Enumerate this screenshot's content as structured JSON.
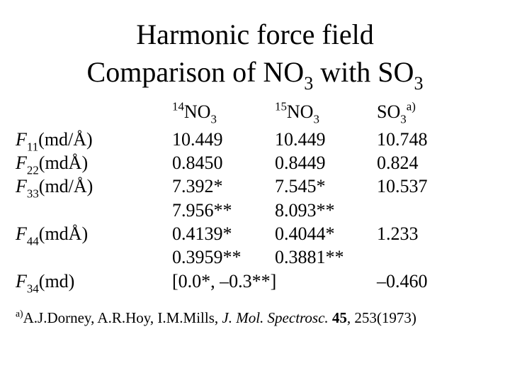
{
  "title": {
    "line1": "Harmonic force field",
    "line2": {
      "a": "Comparison of NO",
      "a_sub": "3",
      "b": " with SO",
      "b_sub": "3"
    }
  },
  "table": {
    "columns": [
      {
        "sup": "14",
        "text": "NO",
        "sub": "3"
      },
      {
        "sup": "15",
        "text": "NO",
        "sub": "3"
      },
      {
        "text": "SO",
        "sub": "3",
        "sup": "a)"
      }
    ],
    "rows": [
      {
        "label": {
          "symbol": "F",
          "sub": "11",
          "unit": "(md/Å)"
        },
        "cells": [
          "10.449",
          "10.449",
          "10.748"
        ]
      },
      {
        "label": {
          "symbol": "F",
          "sub": "22",
          "unit": "(mdÅ)"
        },
        "cells": [
          "0.8450",
          "0.8449",
          "0.824"
        ]
      },
      {
        "label": {
          "symbol": "F",
          "sub": "33",
          "unit": "(md/Å)"
        },
        "cells": [
          "7.392*",
          "7.545*",
          "10.537"
        ]
      },
      {
        "cells": [
          "7.956**",
          "8.093**",
          null
        ]
      },
      {
        "label": {
          "symbol": "F",
          "sub": "44",
          "unit": "(mdÅ)"
        },
        "cells": [
          "0.4139*",
          "0.4044*",
          "1.233"
        ]
      },
      {
        "cells": [
          "0.3959**",
          "0.3881**",
          null
        ]
      },
      {
        "label": {
          "symbol": "F",
          "sub": "34",
          "unit": "(md)"
        },
        "cells": [
          "[0.0*, –0.3**]",
          null,
          "–0.460"
        ]
      }
    ]
  },
  "footnote": {
    "mark": "a)",
    "authors": "A.J.Dorney, A.R.Hoy, I.M.Mills, ",
    "journal": "J. Mol. Spectrosc.",
    "volume": " 45",
    "pages": ", 253(1973)"
  }
}
